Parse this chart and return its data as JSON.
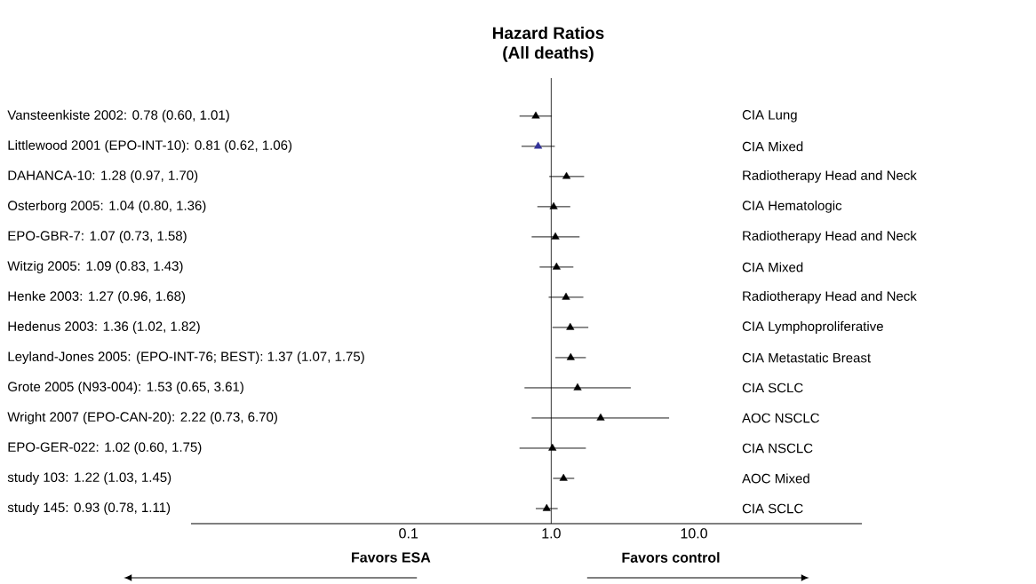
{
  "chart_data": {
    "type": "scatter",
    "orientation": "horizontal",
    "title": "Hazard Ratios",
    "subtitle": "(All deaths)",
    "categories": [
      "Vansteenkiste 2002: 0.78 (0.60, 1.01)",
      "Littlewood 2001 (EPO-INT-10): 0.81 (0.62, 1.06)",
      "DAHANCA-10: 1.28 (0.97, 1.70)",
      "Osterborg 2005: 1.04 (0.80, 1.36)",
      "EPO-GBR-7: 1.07 (0.73, 1.58)",
      "Witzig 2005: 1.09 (0.83, 1.43)",
      "Henke 2003: 1.27 (0.96, 1.68)",
      "Hedenus 2003: 1.36 (1.02, 1.82)",
      "Leyland-Jones 2005: (EPO-INT-76; BEST): 1.37 (1.07, 1.75)",
      "Grote 2005 (N93-004): 1.53 (0.65, 3.61)",
      "Wright 2007 (EPO-CAN-20): 2.22 (0.73, 6.70)",
      "EPO-GER-022: 1.02 (0.60, 1.75)",
      "study 103: 1.22 (1.03, 1.45)",
      "study 145: 0.93 (0.78, 1.11)"
    ],
    "y2_categories": [
      "CIA Lung",
      "CIA Mixed",
      "Radiotherapy Head and Neck",
      "CIA Hematologic",
      "Radiotherapy Head and Neck",
      "CIA Mixed",
      "Radiotherapy Head and Neck",
      "CIA Lymphoproliferative",
      "CIA Metastatic Breast",
      "CIA SCLC",
      "AOC NSCLC",
      "CIA NSCLC",
      "AOC Mixed",
      "CIA SCLC"
    ],
    "values": [
      0.78,
      0.81,
      1.28,
      1.04,
      1.07,
      1.09,
      1.27,
      1.36,
      1.37,
      1.53,
      2.22,
      1.02,
      1.22,
      0.93
    ],
    "errors": [
      [
        0.6,
        1.01
      ],
      [
        0.62,
        1.06
      ],
      [
        0.97,
        1.7
      ],
      [
        0.8,
        1.36
      ],
      [
        0.73,
        1.58
      ],
      [
        0.83,
        1.43
      ],
      [
        0.96,
        1.68
      ],
      [
        1.02,
        1.82
      ],
      [
        1.07,
        1.75
      ],
      [
        0.65,
        3.61
      ],
      [
        0.73,
        6.7
      ],
      [
        0.6,
        1.75
      ],
      [
        1.03,
        1.45
      ],
      [
        0.78,
        1.11
      ]
    ],
    "colors": [
      "#000000",
      "#333399",
      "#000000",
      "#000000",
      "#000000",
      "#000000",
      "#000000",
      "#000000",
      "#000000",
      "#000000",
      "#000000",
      "#000000",
      "#000000",
      "#000000"
    ],
    "marker": "triangle",
    "log": "x",
    "xlim": [
      0.003,
      150
    ],
    "xticks": [
      {
        "value": 0.1,
        "label": "0.1"
      },
      {
        "value": 1,
        "label": "1.0"
      },
      {
        "value": 10,
        "label": "10.0"
      }
    ],
    "ref_lines": [
      {
        "axis": "x",
        "value": 1
      }
    ],
    "annotations": [
      "Favors ESA",
      "Favors control"
    ]
  }
}
